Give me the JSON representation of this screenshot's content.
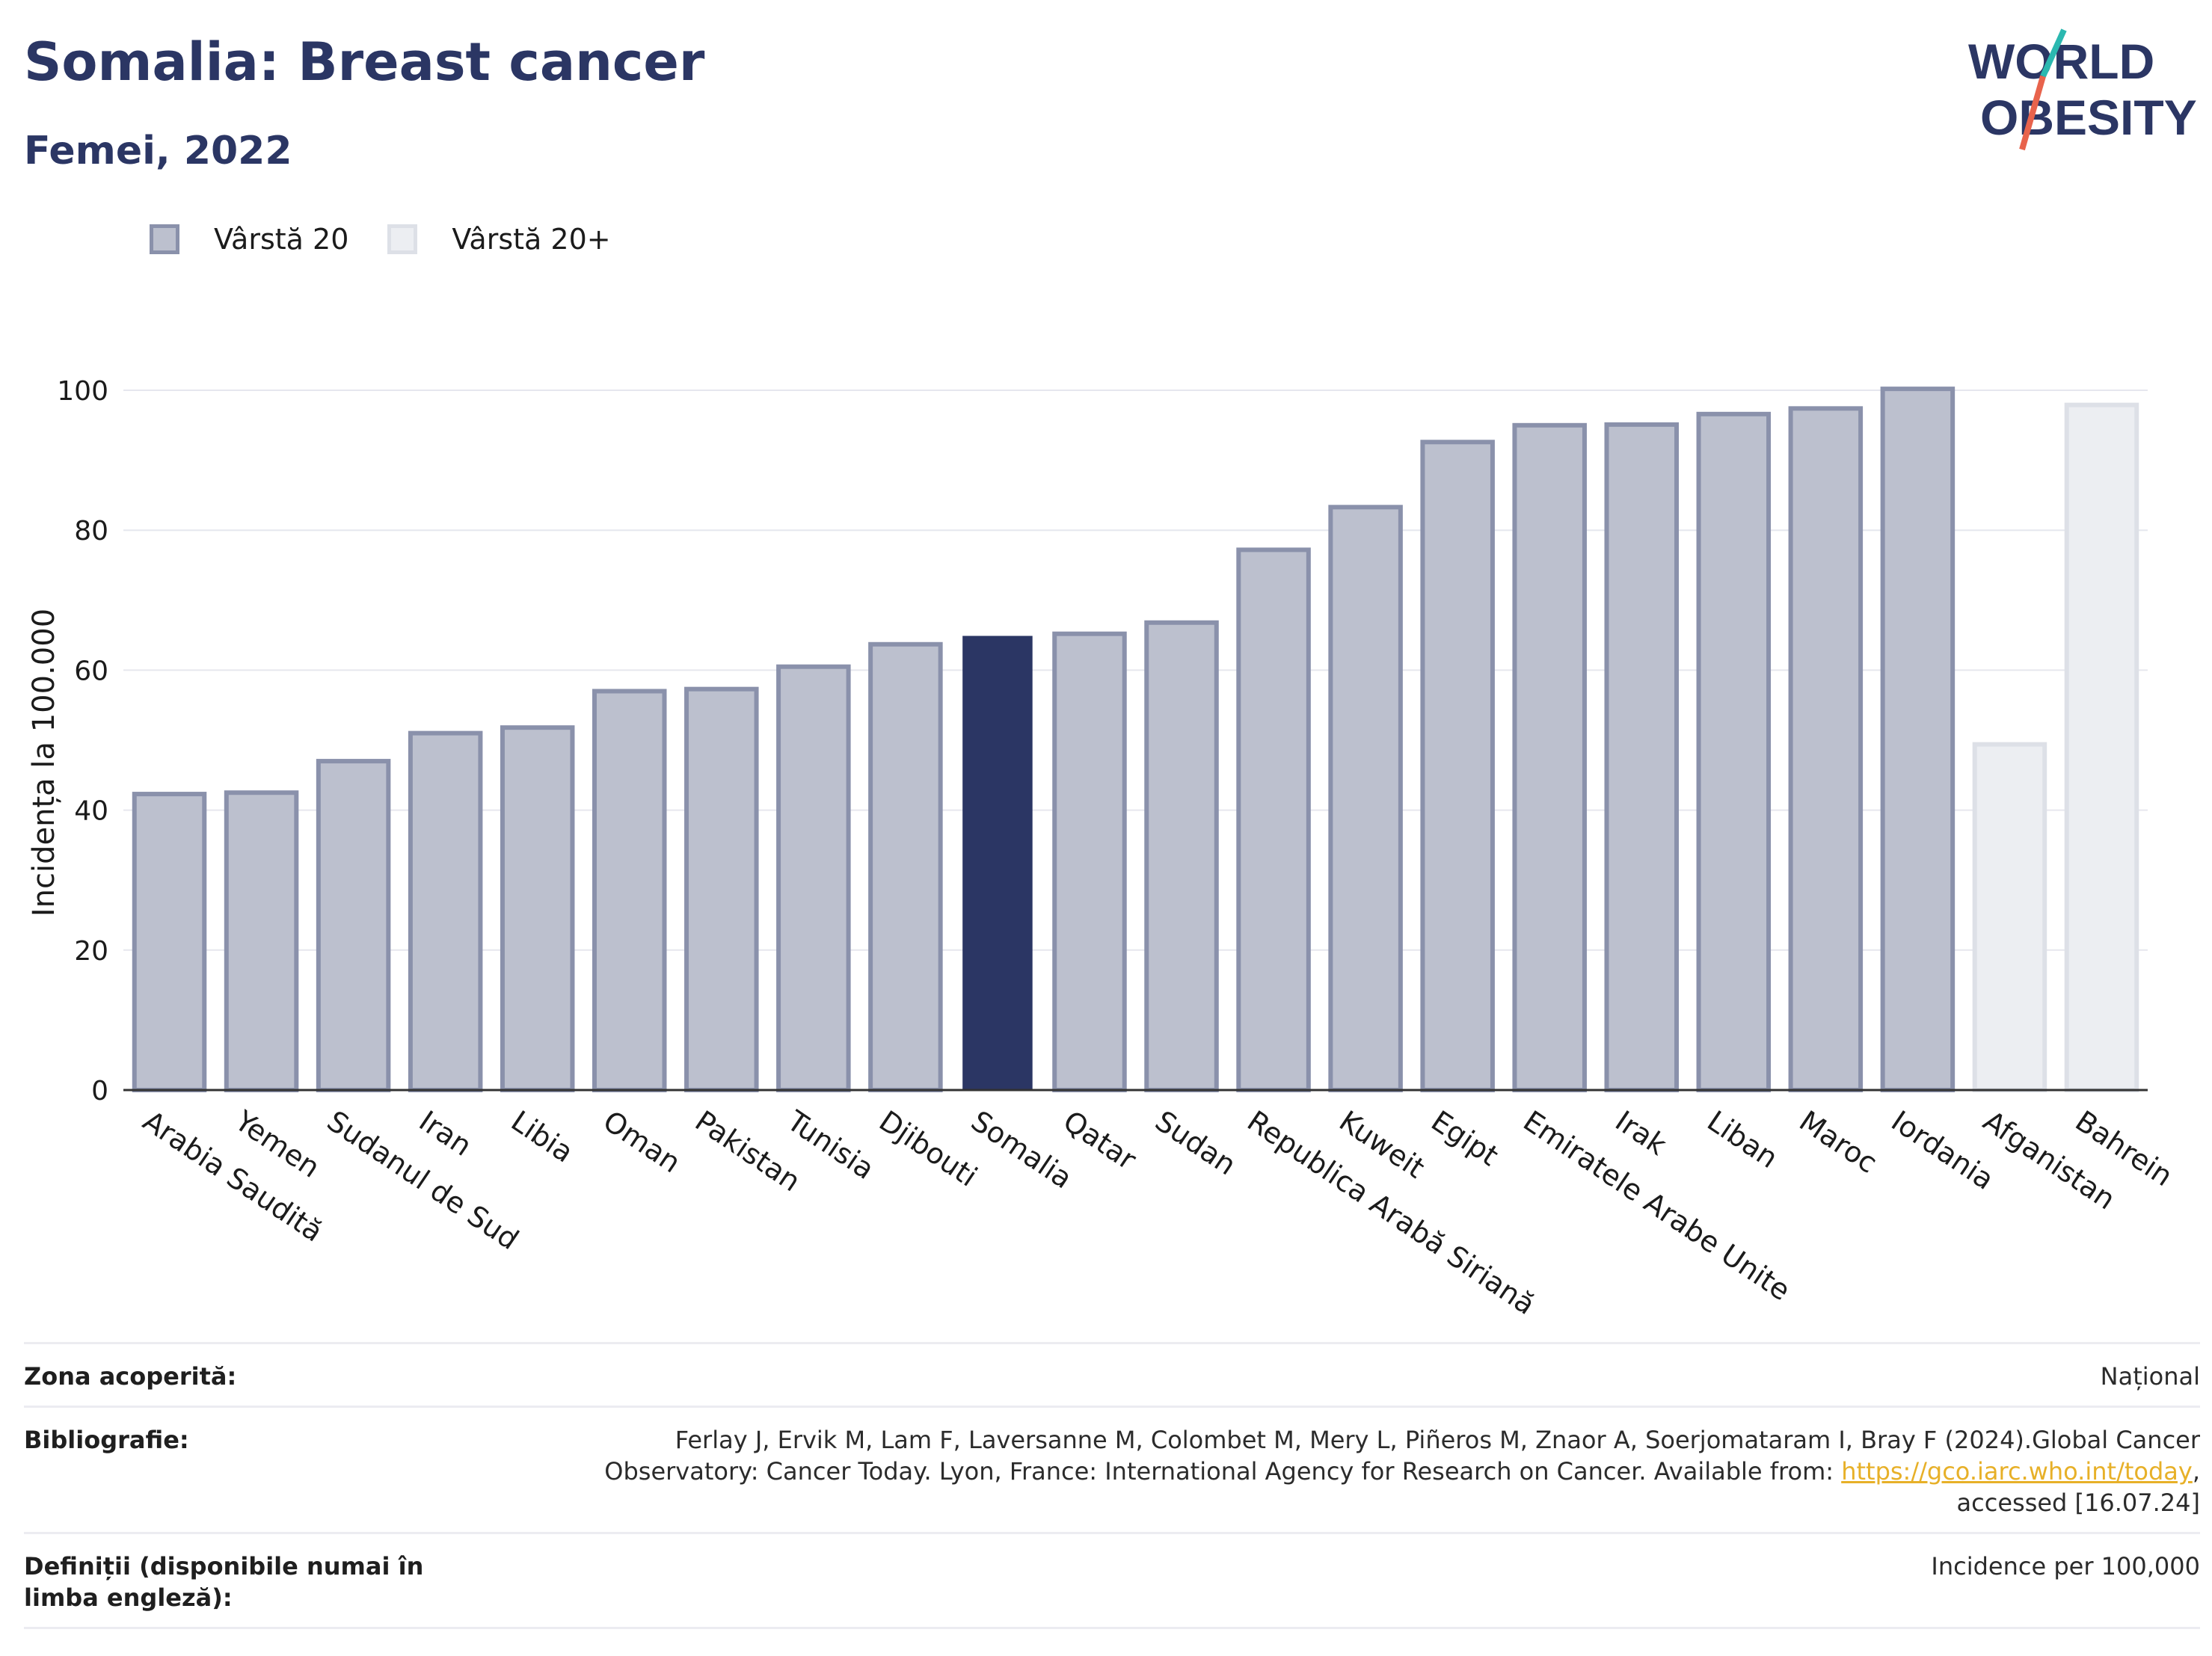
{
  "header": {
    "title": "Somalia: Breast cancer",
    "subtitle": "Femei, 2022"
  },
  "logo": {
    "line1": "WORLD",
    "line2": "OBESITY",
    "accent_colors": [
      "#2bb8b0",
      "#e8634c"
    ],
    "text_color": "#2b3664"
  },
  "legend": {
    "items": [
      {
        "label": "Vârstă 20",
        "style": "dark"
      },
      {
        "label": "Vârstă 20+",
        "style": "light"
      }
    ]
  },
  "chart_data": {
    "type": "bar",
    "ylabel": "Incidența la 100.000",
    "ylim": [
      0,
      100
    ],
    "yticks": [
      0,
      20,
      40,
      60,
      80,
      100
    ],
    "grid": true,
    "categories": [
      "Arabia Saudită",
      "Yemen",
      "Sudanul de Sud",
      "Iran",
      "Libia",
      "Oman",
      "Pakistan",
      "Tunisia",
      "Djibouti",
      "Somalia",
      "Qatar",
      "Sudan",
      "Republica Arabă Siriană",
      "Kuweit",
      "Egipt",
      "Emiratele Arabe Unite",
      "Irak",
      "Liban",
      "Maroc",
      "Iordania",
      "Afganistan",
      "Bahrein"
    ],
    "values": [
      42.3,
      42.5,
      47.0,
      51.0,
      51.8,
      57.0,
      57.3,
      60.5,
      63.7,
      64.9,
      65.2,
      66.8,
      77.2,
      83.3,
      92.6,
      95.0,
      95.1,
      96.6,
      97.4,
      100.2,
      49.4,
      97.9
    ],
    "groups": [
      "Vârstă 20",
      "Vârstă 20",
      "Vârstă 20",
      "Vârstă 20",
      "Vârstă 20",
      "Vârstă 20",
      "Vârstă 20",
      "Vârstă 20",
      "Vârstă 20",
      "Vârstă 20",
      "Vârstă 20",
      "Vârstă 20",
      "Vârstă 20",
      "Vârstă 20",
      "Vârstă 20",
      "Vârstă 20",
      "Vârstă 20",
      "Vârstă 20",
      "Vârstă 20",
      "Vârstă 20",
      "Vârstă 20+",
      "Vârstă 20+"
    ],
    "highlight": "Somalia",
    "colors": {
      "bar_fill": "#bcc0ce",
      "bar_stroke": "#8a91ab",
      "light_fill": "#eceef2",
      "light_stroke": "#dde0e7",
      "highlight": "#2b3664",
      "grid": "#e6e7ee"
    }
  },
  "footer": {
    "rows": [
      {
        "label": "Zona acoperită:",
        "value": "Național"
      },
      {
        "label": "Bibliografie:",
        "value_line1": "Ferlay J, Ervik M, Lam F, Laversanne M, Colombet M, Mery L, Piñeros M, Znaor A, Soerjomataram I, Bray F (2024).Global Cancer",
        "value_line2_prefix": "Observatory: Cancer Today. Lyon, France: International Agency for Research on Cancer. Available from: ",
        "link": "https://gco.iarc.who.int/today",
        "value_line2_suffix": ",",
        "value_line3": "accessed [16.07.24]"
      },
      {
        "label": "Definiții (disponibile numai în limba engleză):",
        "value": "Incidence per 100,000"
      }
    ]
  }
}
